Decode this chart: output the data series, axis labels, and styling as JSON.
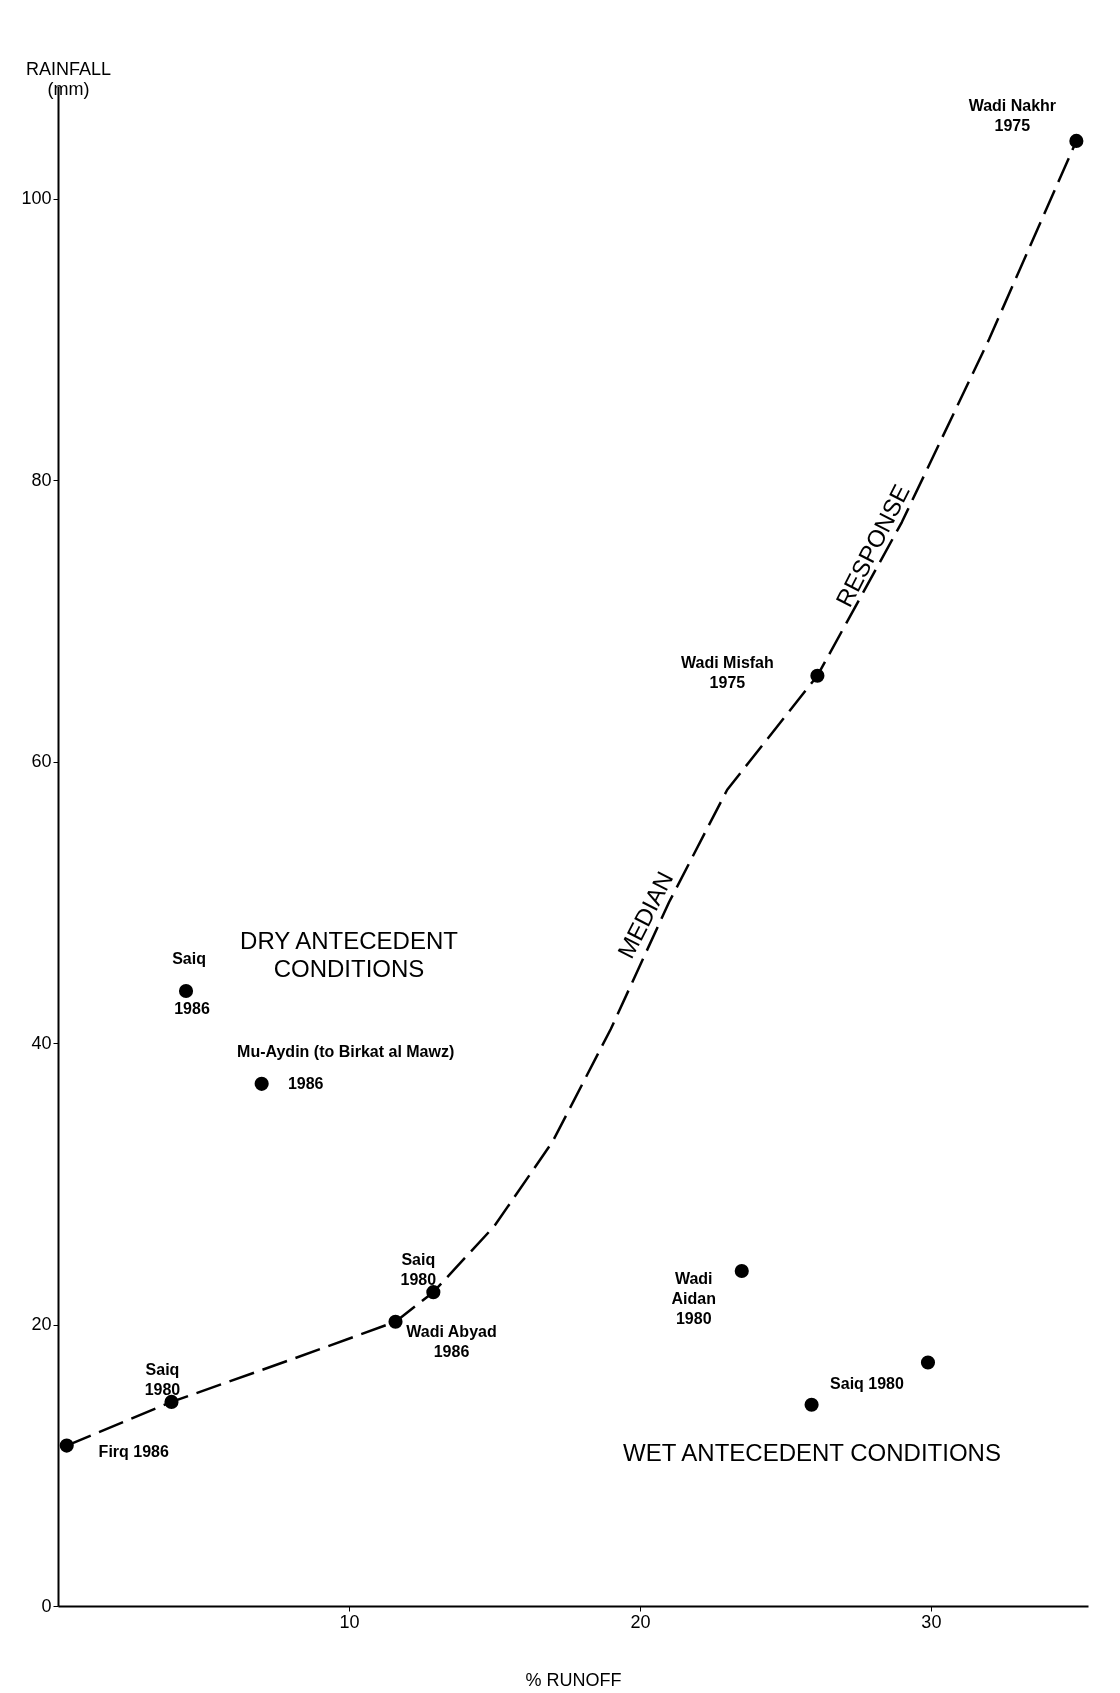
{
  "chart_data": {
    "type": "scatter",
    "xlabel": "% RUNOFF",
    "ylabel": "RAINFALL\n(mm)",
    "xlim": [
      0,
      35.4
    ],
    "ylim": [
      0,
      108
    ],
    "xticks": [
      10,
      20,
      30
    ],
    "yticks": [
      0,
      20,
      40,
      60,
      80,
      100
    ],
    "grid": false,
    "marker": "circle",
    "series": [
      {
        "color": "#000000",
        "x": [
          0.3,
          3.9,
          11.6,
          12.9,
          26.1,
          35.0,
          4.4,
          7.0,
          23.5,
          25.9,
          29.9
        ],
        "values": [
          11.4,
          14.5,
          20.2,
          22.3,
          66.1,
          104.1,
          43.7,
          37.1,
          23.8,
          14.3,
          17.3
        ]
      },
      {
        "type": "line",
        "color": "#000000",
        "line_style": "dashed",
        "marker": "none",
        "x": [
          0.3,
          3.9,
          8,
          11.6,
          12.9,
          15,
          17,
          19,
          21,
          23,
          26.1,
          29,
          32,
          35.0
        ],
        "values": [
          11.4,
          14.5,
          17.5,
          20.2,
          22.3,
          27,
          33,
          41,
          50,
          58,
          66.1,
          77,
          90,
          104.1
        ]
      }
    ],
    "annotations": [
      {
        "text": "Firq 1986",
        "x": 0.3,
        "y": 11.4
      },
      {
        "text": "Saiq\n1980",
        "x": 3.9,
        "y": 14.5
      },
      {
        "text": "Wadi Abyad\n1986",
        "x": 11.6,
        "y": 20.2
      },
      {
        "text": "Saiq\n1980",
        "x": 12.9,
        "y": 22.3
      },
      {
        "text": "Wadi Misfah\n1975",
        "x": 26.1,
        "y": 66.1
      },
      {
        "text": "Wadi Nakhr\n1975",
        "x": 35.0,
        "y": 104.1
      },
      {
        "text": "Saiq",
        "x": 4.4,
        "y": 43.7
      },
      {
        "text": "1986",
        "x": 4.4,
        "y": 43.7
      },
      {
        "text": "Mu-Aydin (to Birkat al Mawz)",
        "x": 7.0,
        "y": 37.1
      },
      {
        "text": "1986",
        "x": 7.0,
        "y": 37.1
      },
      {
        "text": "Wadi\nAidan\n1980",
        "x": 23.5,
        "y": 23.8
      },
      {
        "text": "Saiq  1980",
        "x": 29.9,
        "y": 17.3
      },
      "DRY ANTECEDENT\n   CONDITIONS",
      "WET ANTECEDENT CONDITIONS",
      {
        "text": "MEDIAN",
        "x": 21,
        "y": 50
      },
      {
        "text": "RESPONSE",
        "x": 29,
        "y": 77
      }
    ]
  }
}
